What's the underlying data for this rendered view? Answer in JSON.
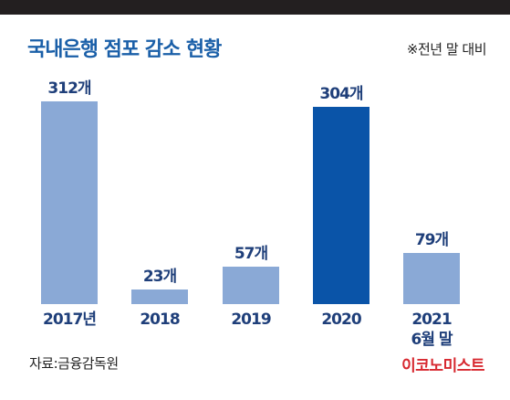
{
  "header": {
    "title": "국내은행 점포 감소 현황",
    "note": "※전년 말 대비"
  },
  "footer": {
    "source": "자료:금융감독원",
    "brand": "이코노미스트"
  },
  "colors": {
    "top_band": "#231f20",
    "title": "#1a5fa8",
    "bar_light": "#8aa9d6",
    "bar_dark": "#0a54a8",
    "label": "#1f3f7a",
    "brand": "#d7282f"
  },
  "chart_data": {
    "type": "bar",
    "title": "국내은행 점포 감소 현황",
    "categories": [
      "2017년",
      "2018",
      "2019",
      "2020",
      "2021\n6월 말"
    ],
    "values": [
      312,
      23,
      57,
      304,
      79
    ],
    "data_labels": [
      "312개",
      "23개",
      "57개",
      "304개",
      "79개"
    ],
    "highlight_index": 3,
    "xlabel": "",
    "ylabel": "",
    "ylim": [
      0,
      330
    ],
    "grid": false,
    "legend": "none"
  }
}
